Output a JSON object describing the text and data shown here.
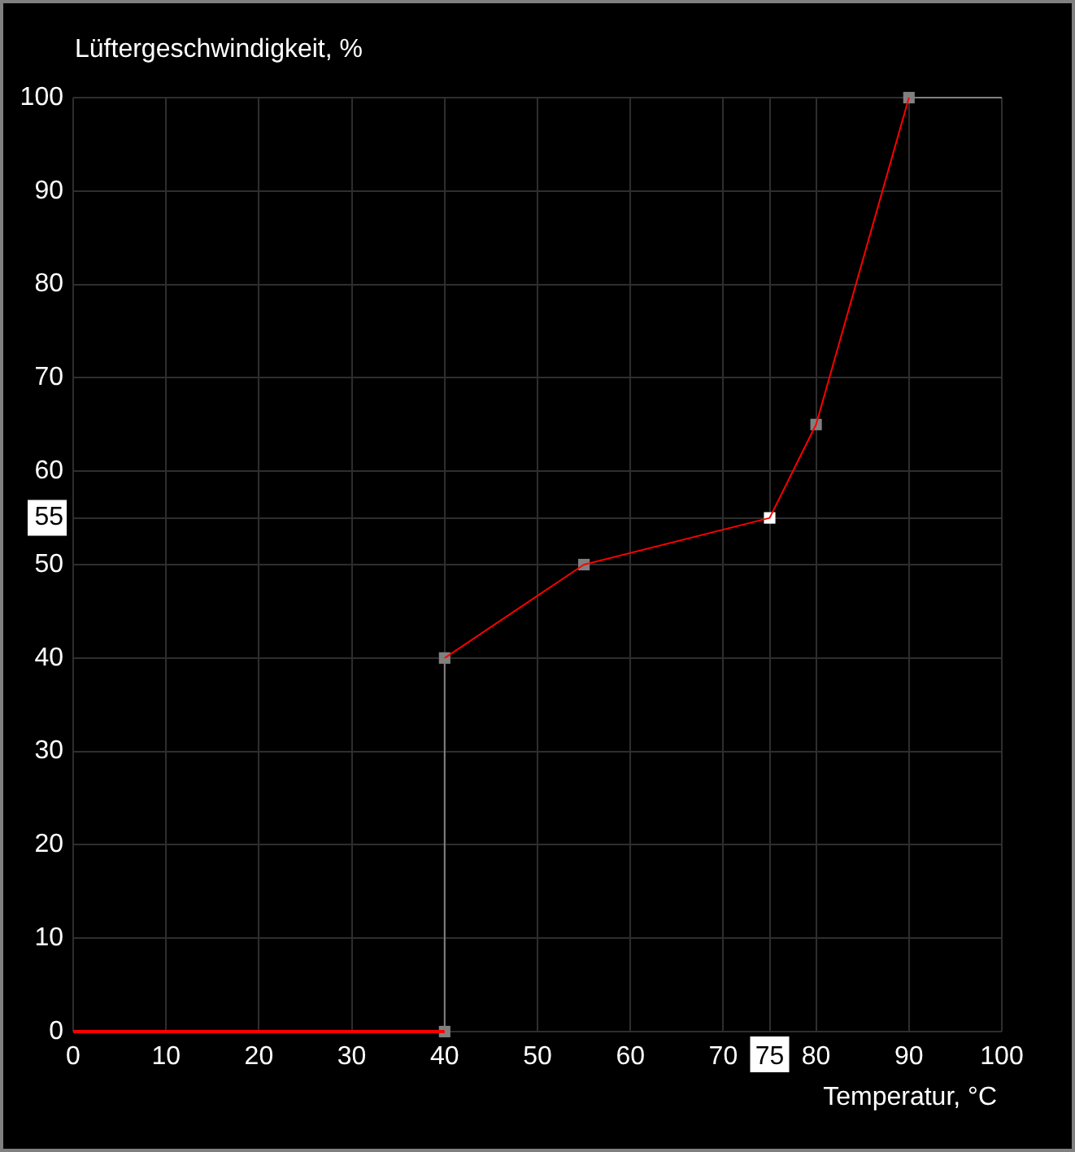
{
  "chart_data": {
    "type": "line",
    "xlabel": "Temperatur, °C",
    "ylabel": "Lüftergeschwindigkeit, %",
    "xlim": [
      0,
      100
    ],
    "xticks": [
      0,
      10,
      20,
      30,
      40,
      50,
      60,
      70,
      75,
      80,
      90,
      100
    ],
    "ylim": [
      0,
      100
    ],
    "yticks": [
      0,
      10,
      20,
      30,
      40,
      50,
      55,
      60,
      70,
      80,
      90,
      100
    ],
    "grid": true,
    "legend": false,
    "marker": "none",
    "series": [
      {
        "type": "line",
        "color": "#ff0000",
        "x": [
          0,
          40
        ],
        "values": [
          0,
          0
        ]
      },
      {
        "type": "line",
        "color": "#808080",
        "x": [
          40,
          40
        ],
        "values": [
          0,
          40
        ]
      },
      {
        "type": "line",
        "color": "#ff0000",
        "x": [
          40,
          55,
          75,
          80,
          90
        ],
        "values": [
          40,
          50,
          55,
          65,
          100
        ]
      },
      {
        "type": "line",
        "color": "#808080",
        "x": [
          90,
          100
        ],
        "values": [
          100,
          100
        ]
      },
      {
        "type": "scatter",
        "marker": "square",
        "color": "#808080",
        "x": [
          40,
          40,
          55,
          80,
          90
        ],
        "values": [
          0,
          40,
          50,
          65,
          100
        ]
      },
      {
        "type": "scatter",
        "marker": "square",
        "color": "#ffffff",
        "x": [
          75
        ],
        "values": [
          55
        ]
      }
    ]
  }
}
